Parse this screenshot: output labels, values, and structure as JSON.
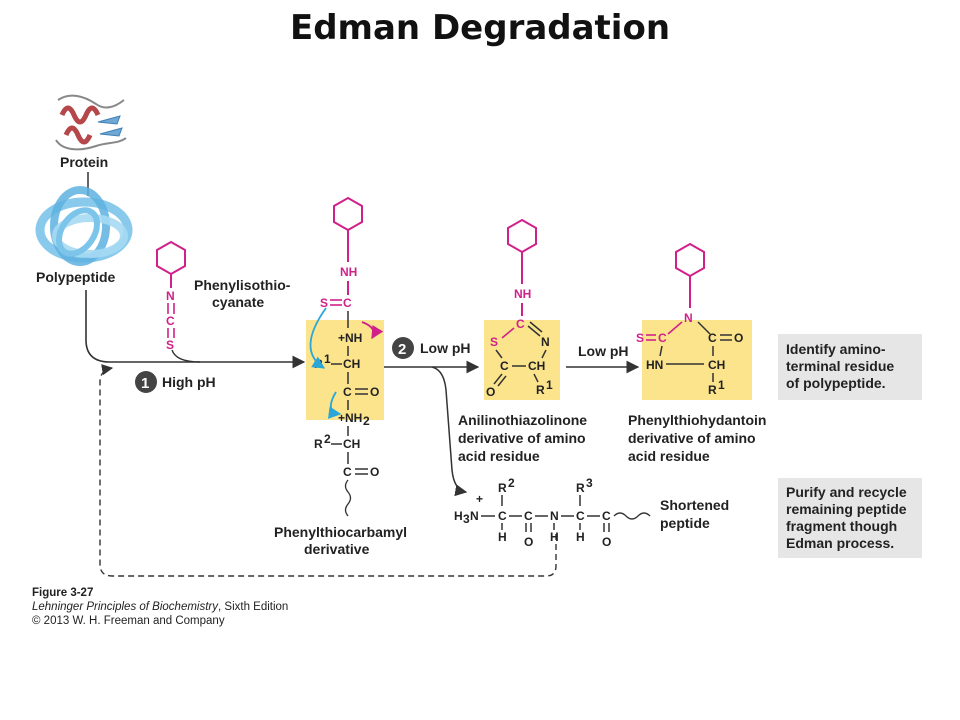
{
  "title": "Edman Degradation",
  "labels": {
    "protein": "Protein",
    "polypeptide": "Polypeptide",
    "pitc_1": "Phenylisothio-",
    "pitc_2": "cyanate",
    "step1_num": "1",
    "step1": "High pH",
    "step2_num": "2",
    "step2": "Low pH",
    "step3": "Low pH",
    "ptc_1": "Phenylthiocarbamyl",
    "ptc_2": "derivative",
    "atz_1": "Anilinothiazolinone",
    "atz_2": "derivative of amino",
    "atz_3": "acid residue",
    "pth_1": "Phenylthiohydantoin",
    "pth_2": "derivative of amino",
    "pth_3": "acid residue",
    "shortened_1": "Shortened",
    "shortened_2": "peptide"
  },
  "boxes": {
    "identify": [
      "Identify amino-",
      "terminal residue",
      "of polypeptide."
    ],
    "purify": [
      "Purify and recycle",
      "remaining peptide",
      "fragment though",
      "Edman process."
    ]
  },
  "chem": {
    "n": "N",
    "c": "C",
    "s": "S",
    "o": "O",
    "h": "H",
    "nh": "NH",
    "ch": "CH",
    "hn": "HN",
    "nh_plus": "+NH",
    "nh2_plus": "+NH",
    "sub2": "2",
    "r1": "R",
    "sup1": "1",
    "r2": "R",
    "sup2": "2",
    "r3": "R",
    "sup3": "3",
    "h3n": "H",
    "sub3": "3",
    "n_after": "N",
    "plus": "+"
  },
  "caption": {
    "figure": "Figure 3-27",
    "book": "Lehninger Principles of Biochemistry",
    "edition": ", Sixth Edition",
    "copyright": "© 2013 W. H. Freeman and Company"
  },
  "colors": {
    "pink": "#d0218a",
    "yellow": "#fbe48c",
    "box_gray": "#e6e6e6",
    "cyan": "#2aa7d8",
    "protein_red": "#b5474b",
    "polypeptide_blue": "#7cc4ea"
  }
}
